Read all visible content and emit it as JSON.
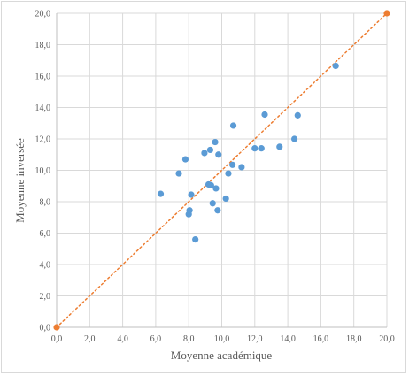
{
  "chart_data": {
    "type": "scatter",
    "title": "",
    "xlabel": "Moyenne académique",
    "ylabel": "Moyenne inversée",
    "xlim": [
      0,
      20
    ],
    "ylim": [
      0,
      20
    ],
    "x_ticks": [
      "0,0",
      "2,0",
      "4,0",
      "6,0",
      "8,0",
      "10,0",
      "12,0",
      "14,0",
      "16,0",
      "18,0",
      "20,0"
    ],
    "y_ticks": [
      "0,0",
      "2,0",
      "4,0",
      "6,0",
      "8,0",
      "10,0",
      "12,0",
      "14,0",
      "16,0",
      "18,0",
      "20,0"
    ],
    "grid": true,
    "legend": "none",
    "series": [
      {
        "color": "#5b9bd5",
        "points": [
          [
            6.3,
            8.5
          ],
          [
            7.4,
            9.8
          ],
          [
            7.8,
            10.7
          ],
          [
            8.0,
            7.2
          ],
          [
            8.05,
            7.45
          ],
          [
            8.15,
            8.45
          ],
          [
            8.4,
            5.6
          ],
          [
            8.95,
            11.1
          ],
          [
            9.2,
            9.1
          ],
          [
            9.3,
            11.3
          ],
          [
            9.35,
            9.05
          ],
          [
            9.45,
            7.9
          ],
          [
            9.6,
            11.8
          ],
          [
            9.65,
            8.85
          ],
          [
            9.75,
            7.45
          ],
          [
            9.8,
            11.0
          ],
          [
            10.25,
            8.2
          ],
          [
            10.4,
            9.8
          ],
          [
            10.65,
            10.35
          ],
          [
            10.7,
            12.85
          ],
          [
            11.2,
            10.2
          ],
          [
            12.0,
            11.4
          ],
          [
            12.4,
            11.4
          ],
          [
            12.6,
            13.55
          ],
          [
            13.5,
            11.5
          ],
          [
            14.4,
            12.0
          ],
          [
            14.6,
            13.5
          ],
          [
            16.9,
            16.65
          ]
        ]
      },
      {
        "color": "#ed7d31",
        "points": [
          [
            0,
            0
          ],
          [
            20,
            20
          ]
        ]
      }
    ],
    "reference_line": {
      "style": "dotted",
      "color": "#ed7d31",
      "from": [
        0,
        0
      ],
      "to": [
        20,
        20
      ]
    }
  }
}
